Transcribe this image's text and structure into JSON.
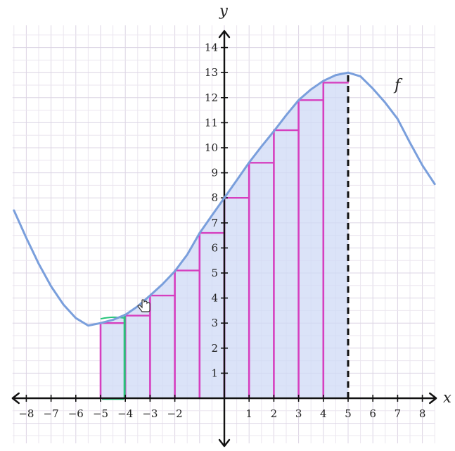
{
  "chart_data": {
    "type": "area",
    "title": "",
    "xlabel": "x",
    "ylabel": "y",
    "xlim": [
      -8.5,
      8.5
    ],
    "ylim": [
      -1.8,
      15
    ],
    "grid": true,
    "x_ticks": [
      -8,
      -7,
      -6,
      -5,
      -4,
      -3,
      -2,
      1,
      2,
      3,
      4,
      5,
      6,
      7,
      8
    ],
    "x_tick_labels": [
      "−8",
      "−7",
      "−6",
      "−5",
      "−4",
      "−3",
      "−2",
      "1",
      "2",
      "3",
      "4",
      "5",
      "6",
      "7",
      "8"
    ],
    "y_ticks": [
      1,
      2,
      3,
      4,
      5,
      6,
      7,
      8,
      9,
      10,
      11,
      12,
      13,
      14
    ],
    "y_tick_labels": [
      "1",
      "2",
      "3",
      "4",
      "5",
      "6",
      "7",
      "8",
      "9",
      "10",
      "11",
      "12",
      "13",
      "14"
    ],
    "curve": {
      "label": "f",
      "color": "#7a9fdc",
      "x": [
        -8.5,
        -8,
        -7.5,
        -7,
        -6.5,
        -6,
        -5.5,
        -5,
        -4.5,
        -4,
        -3.5,
        -3,
        -2.5,
        -2,
        -1.5,
        -1,
        -0.5,
        0,
        0.5,
        1,
        1.5,
        2,
        2.5,
        3,
        3.5,
        4,
        4.5,
        5,
        5.5,
        6,
        6.5,
        7,
        7.5,
        8,
        8.5
      ],
      "y": [
        7.5,
        6.4,
        5.37,
        4.47,
        3.74,
        3.2,
        2.9,
        3.0,
        3.13,
        3.33,
        3.67,
        4.1,
        4.55,
        5.07,
        5.73,
        6.59,
        7.3,
        8.0,
        8.7,
        9.41,
        10.05,
        10.66,
        11.3,
        11.9,
        12.33,
        12.67,
        12.9,
        13.0,
        12.85,
        12.36,
        11.8,
        11.15,
        10.2,
        9.3,
        8.55
      ]
    },
    "shaded_region": {
      "x_from": -5,
      "x_to": 5,
      "fill": "#cfd9f5"
    },
    "boundary_line": {
      "x": 5,
      "style": "dashed"
    },
    "riemann_rectangles": {
      "type": "left-endpoint",
      "color": "#d63fbf",
      "highlight_color": "#27c47a",
      "x_left": [
        -5,
        -4,
        -3,
        -2,
        -1,
        0,
        1,
        2,
        3,
        4
      ],
      "width": 1,
      "heights": [
        3.0,
        3.3,
        4.1,
        5.1,
        6.6,
        8.0,
        9.4,
        10.7,
        11.9,
        12.6
      ],
      "highlighted_index": 0
    }
  }
}
